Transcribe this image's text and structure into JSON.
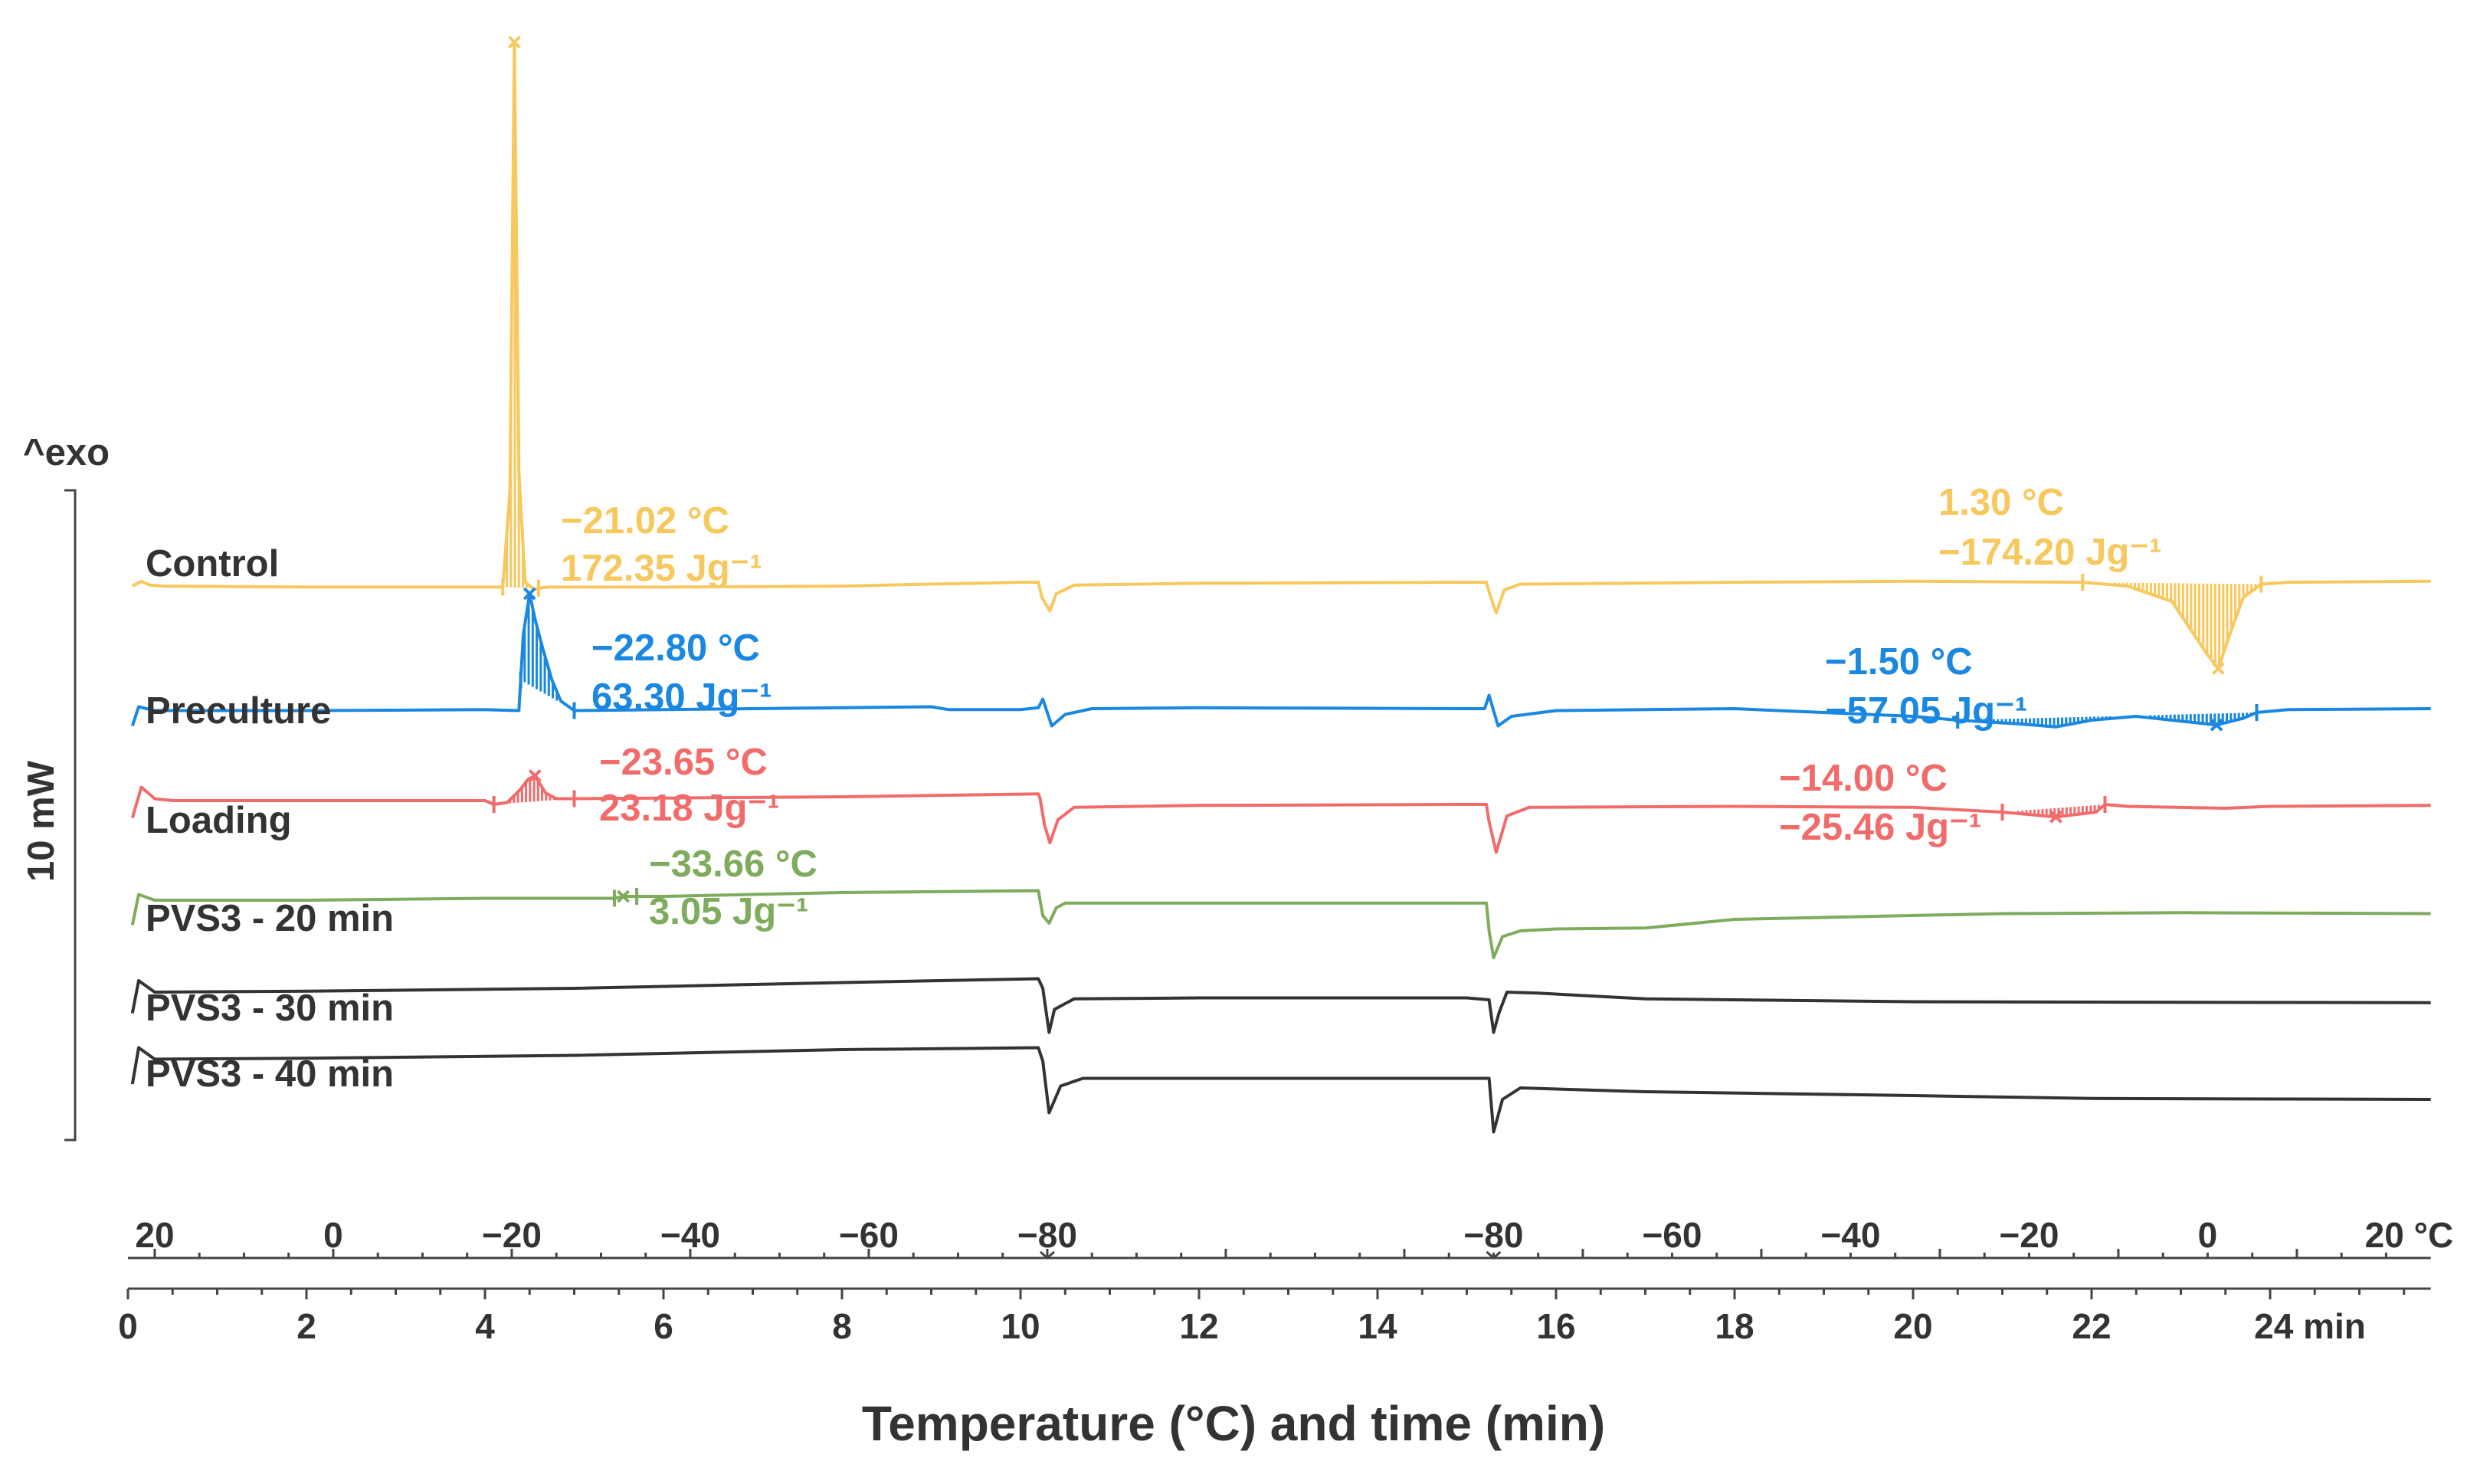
{
  "chart_data": {
    "type": "line",
    "title": "",
    "xlabel": "Temperature (°C) and time (min)",
    "ylabel": "10 mW",
    "exo_label": "^exo",
    "xlim": [
      0,
      25.8
    ],
    "time_axis": {
      "ticks": [
        0,
        2,
        4,
        6,
        8,
        10,
        12,
        14,
        16,
        18,
        20,
        22
      ],
      "tick_labels": [
        "0",
        "2",
        "4",
        "6",
        "8",
        "10",
        "12",
        "14",
        "16",
        "18",
        "20",
        "22"
      ],
      "end_label": "24 min"
    },
    "temperature_axis": {
      "labels": [
        {
          "t": 0.3,
          "text": "20"
        },
        {
          "t": 2.3,
          "text": "0"
        },
        {
          "t": 4.3,
          "text": "−20"
        },
        {
          "t": 6.3,
          "text": "−40"
        },
        {
          "t": 8.3,
          "text": "−60"
        },
        {
          "t": 10.3,
          "text": "−80"
        },
        {
          "t": 15.3,
          "text": "−80"
        },
        {
          "t": 17.3,
          "text": "−60"
        },
        {
          "t": 19.3,
          "text": "−40"
        },
        {
          "t": 21.3,
          "text": "−20"
        },
        {
          "t": 23.3,
          "text": "0"
        },
        {
          "t": 25.3,
          "text": "20 °C"
        }
      ],
      "segments": [
        {
          "phase": "cooling",
          "from_min": 0,
          "to_min": 10.3,
          "from_c": 20,
          "to_c": -80
        },
        {
          "phase": "hold",
          "from_min": 10.3,
          "to_min": 15.3,
          "temp_c": -80
        },
        {
          "phase": "heating",
          "from_min": 15.3,
          "to_min": 25.3,
          "from_c": -80,
          "to_c": 20
        }
      ]
    },
    "series": [
      {
        "name": "Control",
        "color": "#f7c85e",
        "baseline_mw": 0,
        "points": [
          [
            0.05,
            0
          ],
          [
            0.15,
            0.25
          ],
          [
            0.25,
            0.05
          ],
          [
            0.4,
            0
          ],
          [
            2,
            -0.05
          ],
          [
            4,
            -0.05
          ],
          [
            4.2,
            -0.05
          ],
          [
            4.28,
            5
          ],
          [
            4.33,
            28.4
          ],
          [
            4.38,
            6
          ],
          [
            4.45,
            0.2
          ],
          [
            4.55,
            -0.15
          ],
          [
            4.7,
            -0.05
          ],
          [
            6,
            -0.05
          ],
          [
            8,
            0
          ],
          [
            10,
            0.2
          ],
          [
            10.2,
            0.2
          ],
          [
            10.24,
            -0.6
          ],
          [
            10.33,
            -1.3
          ],
          [
            10.4,
            -0.4
          ],
          [
            10.6,
            0.05
          ],
          [
            12,
            0.15
          ],
          [
            15,
            0.2
          ],
          [
            15.22,
            0.2
          ],
          [
            15.25,
            -0.3
          ],
          [
            15.33,
            -1.4
          ],
          [
            15.42,
            -0.2
          ],
          [
            15.6,
            0.1
          ],
          [
            18,
            0.2
          ],
          [
            20,
            0.25
          ],
          [
            21.9,
            0.2
          ],
          [
            22.4,
            0
          ],
          [
            22.9,
            -0.8
          ],
          [
            23.3,
            -3.6
          ],
          [
            23.42,
            -4.3
          ],
          [
            23.55,
            -2.5
          ],
          [
            23.7,
            -0.6
          ],
          [
            23.9,
            0.1
          ],
          [
            24.2,
            0.2
          ],
          [
            25.8,
            0.25
          ]
        ],
        "peaks": [
          {
            "temp_label": "−21.02 °C",
            "enthalpy_label": "172.35 Jg⁻¹",
            "type": "crystallization",
            "from": 4.2,
            "to": 4.6
          },
          {
            "temp_label": "1.30 °C",
            "enthalpy_label": "−174.20 Jg⁻¹",
            "type": "melting",
            "from": 21.9,
            "to": 23.9
          }
        ]
      },
      {
        "name": "Preculture",
        "color": "#1a87e0",
        "baseline_mw": -6.5,
        "points": [
          [
            0.05,
            -0.8
          ],
          [
            0.12,
            0.2
          ],
          [
            0.3,
            0
          ],
          [
            2,
            0
          ],
          [
            4,
            0.05
          ],
          [
            4.38,
            0
          ],
          [
            4.43,
            4
          ],
          [
            4.5,
            6.1
          ],
          [
            4.56,
            4.8
          ],
          [
            4.65,
            3.2
          ],
          [
            4.75,
            1.6
          ],
          [
            4.85,
            0.5
          ],
          [
            5,
            0
          ],
          [
            7,
            0.1
          ],
          [
            9,
            0.2
          ],
          [
            9.2,
            0.05
          ],
          [
            10,
            0.05
          ],
          [
            10.2,
            0.15
          ],
          [
            10.25,
            0.6
          ],
          [
            10.35,
            -0.8
          ],
          [
            10.5,
            -0.2
          ],
          [
            10.8,
            0.1
          ],
          [
            12,
            0.15
          ],
          [
            15,
            0.1
          ],
          [
            15.2,
            0.1
          ],
          [
            15.25,
            0.8
          ],
          [
            15.35,
            -0.8
          ],
          [
            15.5,
            -0.3
          ],
          [
            16,
            0
          ],
          [
            18,
            0.1
          ],
          [
            20,
            -0.3
          ],
          [
            20.5,
            -0.5
          ],
          [
            21.2,
            -0.7
          ],
          [
            21.6,
            -0.85
          ],
          [
            22,
            -0.5
          ],
          [
            22.5,
            -0.3
          ],
          [
            23,
            -0.55
          ],
          [
            23.4,
            -0.75
          ],
          [
            23.7,
            -0.4
          ],
          [
            23.85,
            -0.1
          ],
          [
            24.2,
            0.05
          ],
          [
            25.8,
            0.1
          ]
        ],
        "peaks": [
          {
            "temp_label": "−22.80 °C",
            "enthalpy_label": "63.30 Jg⁻¹",
            "type": "crystallization",
            "from": 4.4,
            "to": 5.0
          },
          {
            "temp_label": "−1.50 °C",
            "enthalpy_label": "−57.05 Jg⁻¹",
            "type": "melting",
            "from": 20.5,
            "to": 23.85
          }
        ]
      },
      {
        "name": "Loading",
        "color": "#f26b6b",
        "baseline_mw": -11.5,
        "points": [
          [
            0.05,
            -0.6
          ],
          [
            0.15,
            1.0
          ],
          [
            0.3,
            0.4
          ],
          [
            0.5,
            0.3
          ],
          [
            2,
            0.3
          ],
          [
            4,
            0.3
          ],
          [
            4.1,
            0.1
          ],
          [
            4.25,
            0.2
          ],
          [
            4.4,
            0.9
          ],
          [
            4.48,
            1.4
          ],
          [
            4.56,
            1.6
          ],
          [
            4.68,
            0.7
          ],
          [
            4.8,
            0.4
          ],
          [
            5,
            0.4
          ],
          [
            8,
            0.5
          ],
          [
            10.2,
            0.65
          ],
          [
            10.22,
            0.4
          ],
          [
            10.27,
            -1.0
          ],
          [
            10.33,
            -1.9
          ],
          [
            10.42,
            -0.7
          ],
          [
            10.6,
            -0.05
          ],
          [
            12,
            0.05
          ],
          [
            15,
            0.1
          ],
          [
            15.22,
            0.1
          ],
          [
            15.25,
            -0.8
          ],
          [
            15.33,
            -2.4
          ],
          [
            15.45,
            -0.5
          ],
          [
            15.7,
            -0.05
          ],
          [
            18,
            0
          ],
          [
            20,
            -0.05
          ],
          [
            21,
            -0.3
          ],
          [
            21.6,
            -0.55
          ],
          [
            22.05,
            -0.3
          ],
          [
            22.15,
            0.1
          ],
          [
            22.4,
            0
          ],
          [
            23.5,
            -0.1
          ],
          [
            24,
            0
          ],
          [
            25.8,
            0.05
          ]
        ],
        "peaks": [
          {
            "temp_label": "−23.65 °C",
            "enthalpy_label": "23.18 Jg⁻¹",
            "type": "crystallization",
            "from": 4.1,
            "to": 5.0
          },
          {
            "temp_label": "−14.00 °C",
            "enthalpy_label": "−25.46 Jg⁻¹",
            "type": "melting",
            "from": 21.0,
            "to": 22.15
          }
        ]
      },
      {
        "name": "PVS3 - 20 min",
        "color": "#7eab5c",
        "baseline_mw": -16.5,
        "points": [
          [
            0.05,
            -1.2
          ],
          [
            0.12,
            0.4
          ],
          [
            0.3,
            0.1
          ],
          [
            2,
            0.1
          ],
          [
            4,
            0.2
          ],
          [
            5.45,
            0.2
          ],
          [
            5.55,
            0.3
          ],
          [
            5.7,
            0.3
          ],
          [
            6,
            0.3
          ],
          [
            8,
            0.5
          ],
          [
            10.2,
            0.6
          ],
          [
            10.25,
            -0.7
          ],
          [
            10.32,
            -1.1
          ],
          [
            10.4,
            -0.3
          ],
          [
            10.5,
            -0.05
          ],
          [
            12,
            -0.05
          ],
          [
            15,
            -0.05
          ],
          [
            15.22,
            -0.05
          ],
          [
            15.25,
            -1.5
          ],
          [
            15.3,
            -2.9
          ],
          [
            15.4,
            -1.8
          ],
          [
            15.6,
            -1.5
          ],
          [
            16,
            -1.4
          ],
          [
            17,
            -1.35
          ],
          [
            18,
            -0.9
          ],
          [
            19,
            -0.8
          ],
          [
            21,
            -0.6
          ],
          [
            23,
            -0.55
          ],
          [
            25.8,
            -0.6
          ]
        ],
        "peaks": [
          {
            "temp_label": "−33.66 °C",
            "enthalpy_label": "3.05 Jg⁻¹",
            "type": "crystallization",
            "from": 5.45,
            "to": 5.7
          }
        ]
      },
      {
        "name": "PVS3 - 30 min",
        "color": "#333333",
        "baseline_mw": -21.5,
        "points": [
          [
            0.05,
            -0.8
          ],
          [
            0.12,
            0.9
          ],
          [
            0.3,
            0.3
          ],
          [
            2,
            0.35
          ],
          [
            5,
            0.5
          ],
          [
            8,
            0.8
          ],
          [
            10.2,
            1.0
          ],
          [
            10.25,
            0.5
          ],
          [
            10.32,
            -1.8
          ],
          [
            10.38,
            -0.6
          ],
          [
            10.6,
            -0.05
          ],
          [
            12,
            0
          ],
          [
            15,
            0
          ],
          [
            15.25,
            -0.1
          ],
          [
            15.3,
            -1.8
          ],
          [
            15.36,
            -0.8
          ],
          [
            15.45,
            0.3
          ],
          [
            15.8,
            0.25
          ],
          [
            17,
            -0.05
          ],
          [
            20,
            -0.2
          ],
          [
            25.8,
            -0.25
          ]
        ],
        "peaks": []
      },
      {
        "name": "PVS3 - 40 min",
        "color": "#333333",
        "baseline_mw": -25.0,
        "points": [
          [
            0.05,
            -1.0
          ],
          [
            0.12,
            0.9
          ],
          [
            0.3,
            0.3
          ],
          [
            2,
            0.35
          ],
          [
            5,
            0.5
          ],
          [
            8,
            0.8
          ],
          [
            10.2,
            0.9
          ],
          [
            10.25,
            0.2
          ],
          [
            10.32,
            -2.5
          ],
          [
            10.45,
            -1.1
          ],
          [
            10.7,
            -0.7
          ],
          [
            12,
            -0.7
          ],
          [
            15,
            -0.7
          ],
          [
            15.25,
            -0.7
          ],
          [
            15.3,
            -3.5
          ],
          [
            15.4,
            -1.8
          ],
          [
            15.6,
            -1.2
          ],
          [
            17,
            -1.4
          ],
          [
            20,
            -1.6
          ],
          [
            22,
            -1.75
          ],
          [
            25.8,
            -1.8
          ]
        ],
        "peaks": []
      }
    ]
  }
}
